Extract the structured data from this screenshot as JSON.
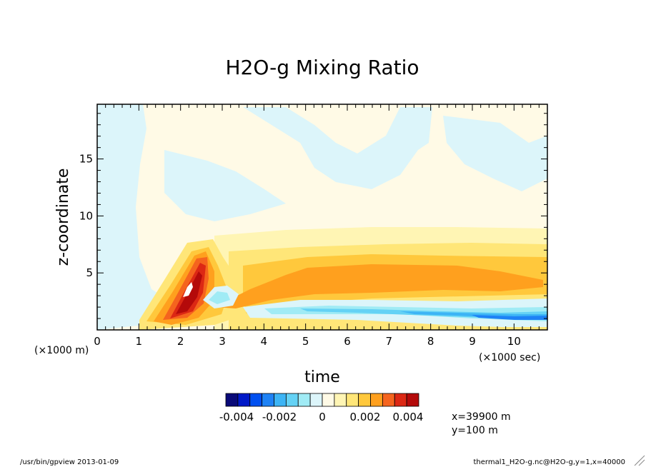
{
  "chart_data": {
    "type": "heatmap",
    "title": "H2O-g Mixing Ratio",
    "xlabel": "time",
    "ylabel": "z-coordinate",
    "x_unit_label": "(×1000 sec)",
    "y_unit_label": "(×1000 m)",
    "xlim": [
      0,
      10.8
    ],
    "ylim": [
      0,
      19.8
    ],
    "x_ticks": [
      "0",
      "1",
      "2",
      "3",
      "4",
      "5",
      "6",
      "7",
      "8",
      "9",
      "10"
    ],
    "y_ticks": [
      "5",
      "10",
      "15"
    ],
    "colorbar": {
      "range": [
        -0.0045,
        0.0045
      ],
      "step": 0.0005,
      "colors": [
        "#0a0a78",
        "#0019c8",
        "#0050f0",
        "#1e82f5",
        "#3cb4f5",
        "#64d2f5",
        "#a0ebf5",
        "#dcf5fa",
        "#fffae6",
        "#fff5b4",
        "#ffe678",
        "#ffc83c",
        "#ffa01e",
        "#f5641e",
        "#dc2814",
        "#b40a0a"
      ],
      "tick_labels": [
        "-0.004",
        "-0.002",
        "0",
        "0.002",
        "0.004"
      ],
      "tick_values": [
        -0.004,
        -0.002,
        0,
        0.002,
        0.004
      ]
    },
    "annotation_lines": [
      "x=39900 m",
      "y=100 m"
    ]
  },
  "footer": {
    "left": "/usr/bin/gpview  2013-01-09",
    "right": "thermal1_H2O-g.nc@H2O-g,y=1,x=40000"
  }
}
